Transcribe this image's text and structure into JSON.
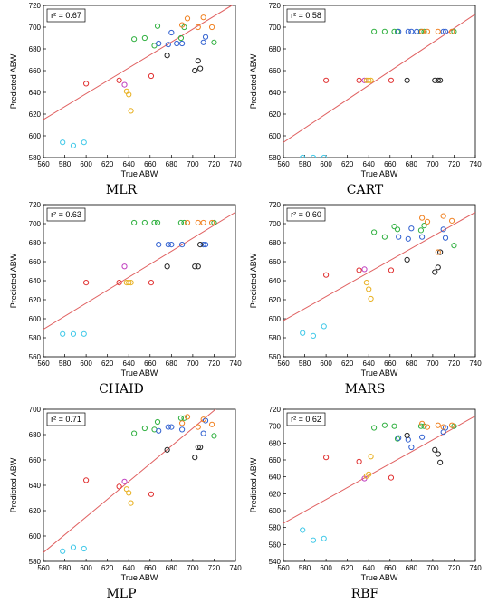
{
  "colors": {
    "fit_line": "#e06060",
    "cyan": "#3fc8e8",
    "red": "#e03030",
    "magenta": "#c040c0",
    "yellow": "#e8b020",
    "green": "#30b040",
    "blue": "#3060d0",
    "black": "#202020",
    "orange": "#f08020"
  },
  "chart_data": [
    {
      "type": "scatter",
      "title": "MLR",
      "r2": "r² = 0.67",
      "xlabel": "True ABW",
      "ylabel": "Predicted ABW",
      "xlim": [
        560,
        740
      ],
      "ylim": [
        580,
        720
      ],
      "xticks": [
        560,
        580,
        600,
        620,
        640,
        660,
        680,
        700,
        720,
        740
      ],
      "yticks": [
        580,
        600,
        620,
        640,
        660,
        680,
        700,
        720
      ],
      "fit": [
        [
          560,
          615
        ],
        [
          740,
          722
        ]
      ],
      "points": [
        [
          578,
          594,
          "cyan"
        ],
        [
          588,
          591,
          "cyan"
        ],
        [
          598,
          594,
          "cyan"
        ],
        [
          600,
          648,
          "red"
        ],
        [
          631,
          651,
          "red"
        ],
        [
          661,
          655,
          "red"
        ],
        [
          636,
          647,
          "magenta"
        ],
        [
          638,
          641,
          "yellow"
        ],
        [
          640,
          638,
          "yellow"
        ],
        [
          642,
          623,
          "yellow"
        ],
        [
          645,
          689,
          "green"
        ],
        [
          655,
          690,
          "green"
        ],
        [
          664,
          683,
          "green"
        ],
        [
          667,
          701,
          "green"
        ],
        [
          689,
          690,
          "green"
        ],
        [
          692,
          700,
          "green"
        ],
        [
          720,
          686,
          "green"
        ],
        [
          668,
          685,
          "blue"
        ],
        [
          677,
          684,
          "blue"
        ],
        [
          680,
          695,
          "blue"
        ],
        [
          685,
          685,
          "blue"
        ],
        [
          690,
          685,
          "blue"
        ],
        [
          710,
          686,
          "blue"
        ],
        [
          712,
          691,
          "blue"
        ],
        [
          676,
          674,
          "black"
        ],
        [
          702,
          660,
          "black"
        ],
        [
          705,
          669,
          "black"
        ],
        [
          707,
          662,
          "black"
        ],
        [
          690,
          702,
          "orange"
        ],
        [
          695,
          708,
          "orange"
        ],
        [
          705,
          700,
          "orange"
        ],
        [
          710,
          709,
          "orange"
        ],
        [
          718,
          700,
          "orange"
        ]
      ]
    },
    {
      "type": "scatter",
      "title": "CART",
      "r2": "r² = 0.58",
      "xlabel": "True ABW",
      "ylabel": "Predicted ABW",
      "xlim": [
        560,
        740
      ],
      "ylim": [
        580,
        720
      ],
      "xticks": [
        560,
        580,
        600,
        620,
        640,
        660,
        680,
        700,
        720,
        740
      ],
      "yticks": [
        580,
        600,
        620,
        640,
        660,
        680,
        700,
        720
      ],
      "fit": [
        [
          560,
          594
        ],
        [
          740,
          712
        ]
      ],
      "points": [
        [
          578,
          580,
          "cyan"
        ],
        [
          588,
          580,
          "cyan"
        ],
        [
          598,
          580,
          "cyan"
        ],
        [
          600,
          651,
          "red"
        ],
        [
          631,
          651,
          "red"
        ],
        [
          661,
          651,
          "red"
        ],
        [
          636,
          651,
          "magenta"
        ],
        [
          638,
          651,
          "yellow"
        ],
        [
          640,
          651,
          "yellow"
        ],
        [
          642,
          651,
          "yellow"
        ],
        [
          645,
          696,
          "green"
        ],
        [
          655,
          696,
          "green"
        ],
        [
          664,
          696,
          "green"
        ],
        [
          667,
          696,
          "green"
        ],
        [
          689,
          696,
          "green"
        ],
        [
          692,
          696,
          "green"
        ],
        [
          720,
          696,
          "green"
        ],
        [
          668,
          696,
          "blue"
        ],
        [
          677,
          696,
          "blue"
        ],
        [
          680,
          696,
          "blue"
        ],
        [
          685,
          696,
          "blue"
        ],
        [
          710,
          696,
          "blue"
        ],
        [
          712,
          696,
          "blue"
        ],
        [
          676,
          651,
          "black"
        ],
        [
          702,
          651,
          "black"
        ],
        [
          705,
          651,
          "black"
        ],
        [
          707,
          651,
          "black"
        ],
        [
          690,
          696,
          "orange"
        ],
        [
          695,
          696,
          "orange"
        ],
        [
          705,
          696,
          "orange"
        ],
        [
          718,
          696,
          "orange"
        ]
      ]
    },
    {
      "type": "scatter",
      "title": "CHAID",
      "r2": "r² = 0.63",
      "xlabel": "True ABW",
      "ylabel": "Predicted ABW",
      "xlim": [
        560,
        740
      ],
      "ylim": [
        560,
        720
      ],
      "xticks": [
        560,
        580,
        600,
        620,
        640,
        660,
        680,
        700,
        720,
        740
      ],
      "yticks": [
        560,
        580,
        600,
        620,
        640,
        660,
        680,
        700,
        720
      ],
      "fit": [
        [
          560,
          589
        ],
        [
          740,
          712
        ]
      ],
      "points": [
        [
          578,
          584,
          "cyan"
        ],
        [
          588,
          584,
          "cyan"
        ],
        [
          598,
          584,
          "cyan"
        ],
        [
          600,
          638,
          "red"
        ],
        [
          631,
          638,
          "red"
        ],
        [
          661,
          638,
          "red"
        ],
        [
          636,
          655,
          "magenta"
        ],
        [
          638,
          638,
          "yellow"
        ],
        [
          640,
          638,
          "yellow"
        ],
        [
          642,
          638,
          "yellow"
        ],
        [
          645,
          701,
          "green"
        ],
        [
          655,
          701,
          "green"
        ],
        [
          664,
          701,
          "green"
        ],
        [
          667,
          701,
          "green"
        ],
        [
          689,
          701,
          "green"
        ],
        [
          692,
          701,
          "green"
        ],
        [
          720,
          701,
          "green"
        ],
        [
          668,
          678,
          "blue"
        ],
        [
          677,
          678,
          "blue"
        ],
        [
          680,
          678,
          "blue"
        ],
        [
          690,
          678,
          "blue"
        ],
        [
          710,
          678,
          "blue"
        ],
        [
          712,
          678,
          "blue"
        ],
        [
          676,
          655,
          "black"
        ],
        [
          702,
          655,
          "black"
        ],
        [
          705,
          655,
          "black"
        ],
        [
          707,
          678,
          "black"
        ],
        [
          695,
          701,
          "orange"
        ],
        [
          705,
          701,
          "orange"
        ],
        [
          710,
          701,
          "orange"
        ],
        [
          718,
          701,
          "orange"
        ]
      ]
    },
    {
      "type": "scatter",
      "title": "MARS",
      "r2": "r² = 0.60",
      "xlabel": "True ABW",
      "ylabel": "Predicted ABW",
      "xlim": [
        560,
        740
      ],
      "ylim": [
        560,
        720
      ],
      "xticks": [
        560,
        580,
        600,
        620,
        640,
        660,
        680,
        700,
        720,
        740
      ],
      "yticks": [
        560,
        580,
        600,
        620,
        640,
        660,
        680,
        700,
        720
      ],
      "fit": [
        [
          560,
          598
        ],
        [
          740,
          712
        ]
      ],
      "points": [
        [
          578,
          585,
          "cyan"
        ],
        [
          588,
          582,
          "cyan"
        ],
        [
          598,
          592,
          "cyan"
        ],
        [
          600,
          646,
          "red"
        ],
        [
          631,
          651,
          "red"
        ],
        [
          661,
          651,
          "red"
        ],
        [
          636,
          652,
          "magenta"
        ],
        [
          638,
          638,
          "yellow"
        ],
        [
          640,
          631,
          "yellow"
        ],
        [
          642,
          621,
          "yellow"
        ],
        [
          645,
          691,
          "green"
        ],
        [
          655,
          686,
          "green"
        ],
        [
          664,
          697,
          "green"
        ],
        [
          667,
          694,
          "green"
        ],
        [
          689,
          693,
          "green"
        ],
        [
          692,
          698,
          "green"
        ],
        [
          720,
          677,
          "green"
        ],
        [
          668,
          686,
          "blue"
        ],
        [
          677,
          684,
          "blue"
        ],
        [
          680,
          695,
          "blue"
        ],
        [
          690,
          686,
          "blue"
        ],
        [
          710,
          694,
          "blue"
        ],
        [
          712,
          685,
          "blue"
        ],
        [
          676,
          662,
          "black"
        ],
        [
          702,
          649,
          "black"
        ],
        [
          705,
          654,
          "black"
        ],
        [
          707,
          670,
          "black"
        ],
        [
          690,
          706,
          "orange"
        ],
        [
          695,
          702,
          "orange"
        ],
        [
          705,
          670,
          "orange"
        ],
        [
          710,
          708,
          "orange"
        ],
        [
          718,
          703,
          "orange"
        ]
      ]
    },
    {
      "type": "scatter",
      "title": "MLP",
      "r2": "r² = 0.71",
      "xlabel": "True ABW",
      "ylabel": "Predicted ABW",
      "xlim": [
        560,
        740
      ],
      "ylim": [
        580,
        700
      ],
      "xticks": [
        560,
        580,
        600,
        620,
        640,
        660,
        680,
        700,
        720,
        740
      ],
      "yticks": [
        580,
        600,
        620,
        640,
        660,
        680,
        700
      ],
      "fit": [
        [
          560,
          587
        ],
        [
          740,
          713
        ]
      ],
      "points": [
        [
          578,
          588,
          "cyan"
        ],
        [
          588,
          591,
          "cyan"
        ],
        [
          598,
          590,
          "cyan"
        ],
        [
          600,
          644,
          "red"
        ],
        [
          631,
          639,
          "red"
        ],
        [
          661,
          633,
          "red"
        ],
        [
          636,
          643,
          "magenta"
        ],
        [
          638,
          637,
          "yellow"
        ],
        [
          640,
          634,
          "yellow"
        ],
        [
          642,
          626,
          "yellow"
        ],
        [
          645,
          681,
          "green"
        ],
        [
          655,
          685,
          "green"
        ],
        [
          664,
          684,
          "green"
        ],
        [
          667,
          690,
          "green"
        ],
        [
          689,
          693,
          "green"
        ],
        [
          692,
          693,
          "green"
        ],
        [
          720,
          679,
          "green"
        ],
        [
          668,
          683,
          "blue"
        ],
        [
          677,
          686,
          "blue"
        ],
        [
          680,
          686,
          "blue"
        ],
        [
          690,
          684,
          "blue"
        ],
        [
          710,
          681,
          "blue"
        ],
        [
          712,
          691,
          "blue"
        ],
        [
          676,
          668,
          "black"
        ],
        [
          702,
          662,
          "black"
        ],
        [
          705,
          670,
          "black"
        ],
        [
          707,
          670,
          "black"
        ],
        [
          690,
          689,
          "orange"
        ],
        [
          695,
          694,
          "orange"
        ],
        [
          705,
          686,
          "orange"
        ],
        [
          710,
          692,
          "orange"
        ],
        [
          718,
          688,
          "orange"
        ]
      ]
    },
    {
      "type": "scatter",
      "title": "RBF",
      "r2": "r² = 0.62",
      "xlabel": "True ABW",
      "ylabel": "Predicted ABW",
      "xlim": [
        560,
        740
      ],
      "ylim": [
        540,
        720
      ],
      "xticks": [
        560,
        580,
        600,
        620,
        640,
        660,
        680,
        700,
        720,
        740
      ],
      "yticks": [
        540,
        560,
        580,
        600,
        620,
        640,
        660,
        680,
        700,
        720
      ],
      "fit": [
        [
          560,
          585
        ],
        [
          740,
          712
        ]
      ],
      "points": [
        [
          578,
          577,
          "cyan"
        ],
        [
          588,
          565,
          "cyan"
        ],
        [
          598,
          567,
          "cyan"
        ],
        [
          600,
          663,
          "red"
        ],
        [
          631,
          658,
          "red"
        ],
        [
          661,
          639,
          "red"
        ],
        [
          636,
          638,
          "magenta"
        ],
        [
          638,
          641,
          "yellow"
        ],
        [
          640,
          643,
          "yellow"
        ],
        [
          642,
          664,
          "yellow"
        ],
        [
          645,
          698,
          "green"
        ],
        [
          655,
          701,
          "green"
        ],
        [
          664,
          700,
          "green"
        ],
        [
          667,
          685,
          "green"
        ],
        [
          689,
          700,
          "green"
        ],
        [
          692,
          700,
          "green"
        ],
        [
          720,
          700,
          "green"
        ],
        [
          668,
          686,
          "blue"
        ],
        [
          677,
          684,
          "blue"
        ],
        [
          680,
          675,
          "blue"
        ],
        [
          690,
          687,
          "blue"
        ],
        [
          710,
          693,
          "blue"
        ],
        [
          712,
          698,
          "blue"
        ],
        [
          676,
          689,
          "black"
        ],
        [
          702,
          672,
          "black"
        ],
        [
          705,
          667,
          "black"
        ],
        [
          707,
          657,
          "black"
        ],
        [
          690,
          703,
          "orange"
        ],
        [
          695,
          699,
          "orange"
        ],
        [
          705,
          701,
          "orange"
        ],
        [
          710,
          699,
          "orange"
        ],
        [
          718,
          701,
          "orange"
        ]
      ]
    }
  ]
}
